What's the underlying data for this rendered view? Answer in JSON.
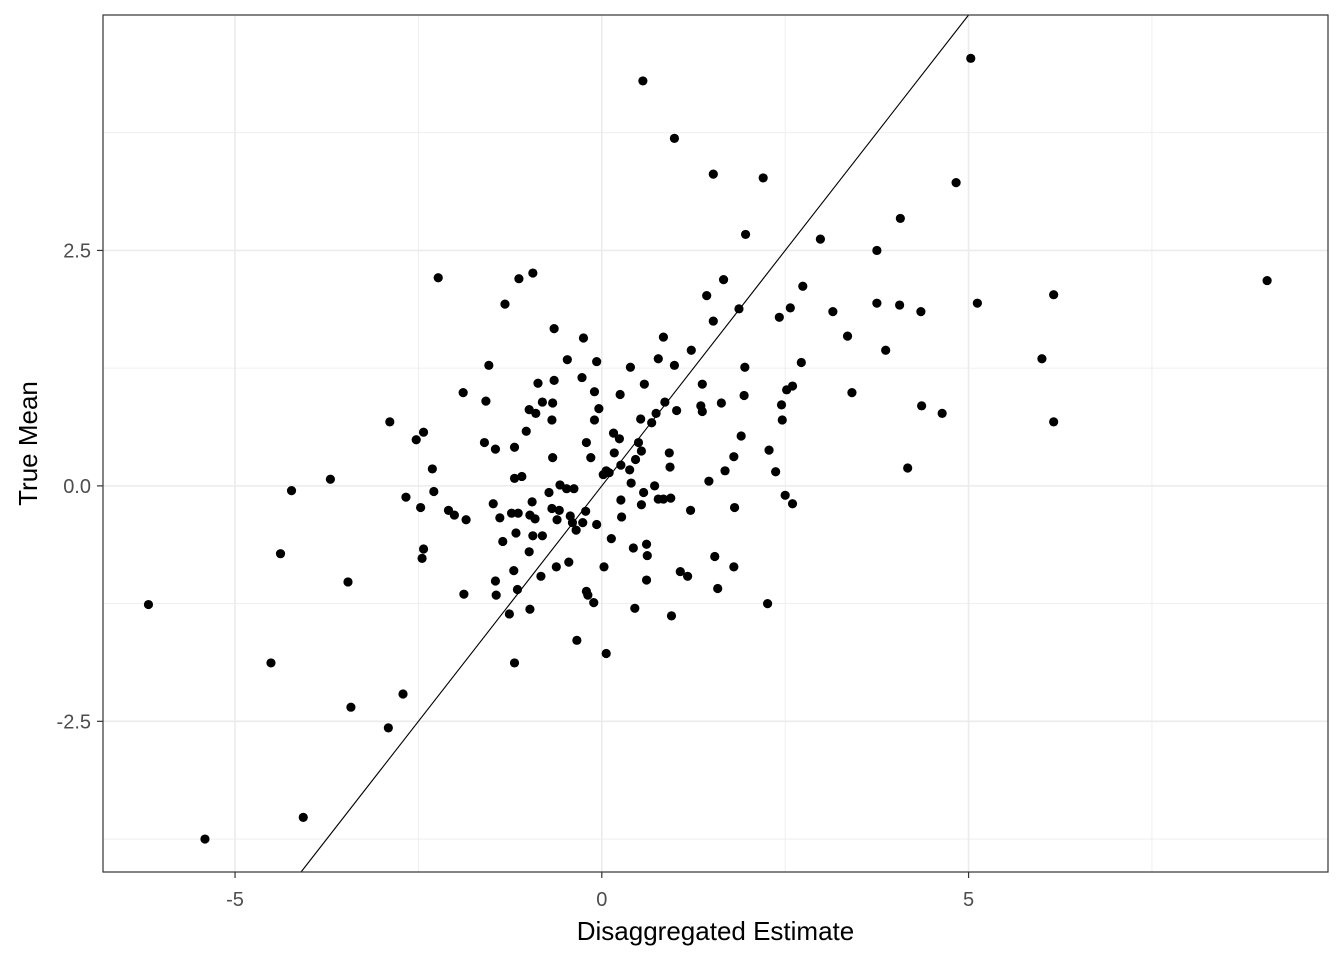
{
  "chart_data": {
    "type": "scatter",
    "xlabel": "Disaggregated Estimate",
    "ylabel": "True Mean",
    "xlim": [
      -6.8,
      9.9
    ],
    "ylim": [
      -4.1,
      5.0
    ],
    "x_ticks": [
      -5,
      0,
      5
    ],
    "x_tick_labels": [
      "-5",
      "0",
      "5"
    ],
    "y_ticks": [
      -2.5,
      0.0,
      2.5
    ],
    "y_tick_labels": [
      "-2.5",
      "0.0",
      "2.5"
    ],
    "x_minor_gridlines": [
      -2.5,
      2.5,
      7.5
    ],
    "y_minor_gridlines": [
      -3.75,
      -1.25,
      1.25,
      3.75
    ],
    "grid": true,
    "reference_line": {
      "intercept": 0,
      "slope": 1
    },
    "colors": {
      "points": "#000000",
      "line": "#000000",
      "grid": "#ebebeb",
      "border": "#333333"
    },
    "points": [
      [
        0.56,
        4.3
      ],
      [
        5.03,
        4.54
      ],
      [
        0.99,
        3.69
      ],
      [
        1.52,
        3.31
      ],
      [
        2.2,
        3.27
      ],
      [
        4.83,
        3.22
      ],
      [
        4.07,
        2.84
      ],
      [
        1.96,
        2.67
      ],
      [
        2.98,
        2.62
      ],
      [
        3.75,
        2.5
      ],
      [
        -2.23,
        2.21
      ],
      [
        -1.13,
        2.2
      ],
      [
        -0.94,
        2.26
      ],
      [
        1.66,
        2.19
      ],
      [
        2.74,
        2.12
      ],
      [
        9.07,
        2.18
      ],
      [
        -1.32,
        1.93
      ],
      [
        1.43,
        2.02
      ],
      [
        1.87,
        1.88
      ],
      [
        2.57,
        1.89
      ],
      [
        3.75,
        1.94
      ],
      [
        4.06,
        1.92
      ],
      [
        4.35,
        1.85
      ],
      [
        5.12,
        1.94
      ],
      [
        6.16,
        2.03
      ],
      [
        1.52,
        1.75
      ],
      [
        2.42,
        1.79
      ],
      [
        3.15,
        1.85
      ],
      [
        -0.65,
        1.67
      ],
      [
        -0.25,
        1.57
      ],
      [
        0.84,
        1.58
      ],
      [
        3.35,
        1.59
      ],
      [
        1.22,
        1.44
      ],
      [
        3.87,
        1.44
      ],
      [
        -1.54,
        1.28
      ],
      [
        -0.47,
        1.34
      ],
      [
        -0.07,
        1.32
      ],
      [
        0.39,
        1.26
      ],
      [
        0.77,
        1.35
      ],
      [
        0.99,
        1.28
      ],
      [
        1.95,
        1.26
      ],
      [
        2.72,
        1.31
      ],
      [
        6.0,
        1.35
      ],
      [
        -0.87,
        1.09
      ],
      [
        -0.65,
        1.12
      ],
      [
        -0.27,
        1.15
      ],
      [
        0.58,
        1.08
      ],
      [
        1.37,
        1.08
      ],
      [
        2.6,
        1.06
      ],
      [
        -1.89,
        0.99
      ],
      [
        -0.1,
        1.0
      ],
      [
        0.25,
        0.97
      ],
      [
        1.94,
        0.96
      ],
      [
        2.52,
        1.02
      ],
      [
        3.41,
        0.99
      ],
      [
        -1.58,
        0.9
      ],
      [
        -0.81,
        0.89
      ],
      [
        -0.67,
        0.88
      ],
      [
        -0.04,
        0.82
      ],
      [
        0.86,
        0.89
      ],
      [
        1.35,
        0.85
      ],
      [
        1.63,
        0.88
      ],
      [
        2.45,
        0.86
      ],
      [
        4.36,
        0.85
      ],
      [
        -2.89,
        0.68
      ],
      [
        -0.99,
        0.81
      ],
      [
        -0.9,
        0.77
      ],
      [
        -0.68,
        0.7
      ],
      [
        -0.1,
        0.7
      ],
      [
        0.53,
        0.71
      ],
      [
        0.68,
        0.67
      ],
      [
        0.74,
        0.77
      ],
      [
        1.02,
        0.8
      ],
      [
        1.37,
        0.79
      ],
      [
        2.46,
        0.7
      ],
      [
        4.64,
        0.77
      ],
      [
        6.16,
        0.68
      ],
      [
        -2.53,
        0.49
      ],
      [
        -2.43,
        0.57
      ],
      [
        -1.6,
        0.46
      ],
      [
        -1.19,
        0.41
      ],
      [
        -1.03,
        0.58
      ],
      [
        -0.67,
        0.3
      ],
      [
        -0.21,
        0.46
      ],
      [
        0.16,
        0.56
      ],
      [
        0.24,
        0.5
      ],
      [
        0.5,
        0.46
      ],
      [
        0.92,
        0.35
      ],
      [
        1.9,
        0.53
      ],
      [
        2.28,
        0.38
      ],
      [
        -3.7,
        0.07
      ],
      [
        -2.31,
        0.18
      ],
      [
        -1.45,
        0.39
      ],
      [
        -1.19,
        0.08
      ],
      [
        -1.09,
        0.1
      ],
      [
        -0.15,
        0.3
      ],
      [
        0.06,
        0.16
      ],
      [
        0.17,
        0.35
      ],
      [
        0.26,
        0.22
      ],
      [
        0.38,
        0.17
      ],
      [
        0.46,
        0.28
      ],
      [
        0.54,
        0.37
      ],
      [
        0.93,
        0.2
      ],
      [
        1.46,
        0.05
      ],
      [
        1.68,
        0.16
      ],
      [
        1.8,
        0.31
      ],
      [
        2.37,
        0.15
      ],
      [
        4.17,
        0.19
      ],
      [
        -4.23,
        -0.05
      ],
      [
        -2.67,
        -0.12
      ],
      [
        -2.29,
        -0.06
      ],
      [
        -0.72,
        -0.07
      ],
      [
        -0.57,
        0.01
      ],
      [
        -0.48,
        -0.03
      ],
      [
        -0.38,
        -0.03
      ],
      [
        0.02,
        0.12
      ],
      [
        0.1,
        0.14
      ],
      [
        0.4,
        0.03
      ],
      [
        0.72,
        0.0
      ],
      [
        0.84,
        -0.14
      ],
      [
        0.94,
        -0.13
      ],
      [
        0.57,
        -0.07
      ],
      [
        0.77,
        -0.14
      ],
      [
        2.5,
        -0.1
      ],
      [
        -2.47,
        -0.23
      ],
      [
        -2.09,
        -0.26
      ],
      [
        -1.48,
        -0.19
      ],
      [
        -1.14,
        -0.29
      ],
      [
        -0.95,
        -0.17
      ],
      [
        -0.68,
        -0.24
      ],
      [
        -0.58,
        -0.26
      ],
      [
        -0.43,
        -0.32
      ],
      [
        -0.22,
        -0.27
      ],
      [
        0.26,
        -0.15
      ],
      [
        0.54,
        -0.2
      ],
      [
        1.21,
        -0.26
      ],
      [
        1.81,
        -0.23
      ],
      [
        2.6,
        -0.19
      ],
      [
        -2.01,
        -0.31
      ],
      [
        -1.85,
        -0.36
      ],
      [
        -1.39,
        -0.34
      ],
      [
        -1.23,
        -0.29
      ],
      [
        -0.98,
        -0.31
      ],
      [
        -0.91,
        -0.35
      ],
      [
        -0.61,
        -0.36
      ],
      [
        -0.4,
        -0.39
      ],
      [
        -0.35,
        -0.47
      ],
      [
        -0.26,
        -0.39
      ],
      [
        -0.07,
        -0.41
      ],
      [
        0.27,
        -0.33
      ],
      [
        -1.35,
        -0.59
      ],
      [
        -1.17,
        -0.5
      ],
      [
        -0.94,
        -0.53
      ],
      [
        -0.81,
        -0.53
      ],
      [
        -0.99,
        -0.7
      ],
      [
        -0.62,
        -0.86
      ],
      [
        -0.45,
        -0.81
      ],
      [
        0.13,
        -0.56
      ],
      [
        0.43,
        -0.66
      ],
      [
        0.61,
        -0.62
      ],
      [
        0.62,
        -0.74
      ],
      [
        -2.43,
        -0.67
      ],
      [
        -2.45,
        -0.77
      ],
      [
        -4.38,
        -0.72
      ],
      [
        -3.46,
        -1.02
      ],
      [
        -1.45,
        -1.01
      ],
      [
        -1.2,
        -0.9
      ],
      [
        -0.83,
        -0.96
      ],
      [
        0.03,
        -0.86
      ],
      [
        0.61,
        -1.0
      ],
      [
        1.07,
        -0.91
      ],
      [
        1.17,
        -0.96
      ],
      [
        1.54,
        -0.75
      ],
      [
        1.8,
        -0.86
      ],
      [
        -1.44,
        -1.16
      ],
      [
        -1.15,
        -1.1
      ],
      [
        -0.21,
        -1.12
      ],
      [
        -0.19,
        -1.16
      ],
      [
        -0.11,
        -1.24
      ],
      [
        1.58,
        -1.09
      ],
      [
        -1.88,
        -1.15
      ],
      [
        -0.98,
        -1.31
      ],
      [
        0.45,
        -1.3
      ],
      [
        -1.26,
        -1.36
      ],
      [
        0.95,
        -1.38
      ],
      [
        2.26,
        -1.25
      ],
      [
        -6.18,
        -1.26
      ],
      [
        -0.34,
        -1.64
      ],
      [
        0.06,
        -1.78
      ],
      [
        -1.19,
        -1.88
      ],
      [
        -4.51,
        -1.88
      ],
      [
        -2.71,
        -2.21
      ],
      [
        -3.42,
        -2.35
      ],
      [
        -2.91,
        -2.57
      ],
      [
        -4.07,
        -3.52
      ],
      [
        -5.41,
        -3.75
      ]
    ]
  }
}
